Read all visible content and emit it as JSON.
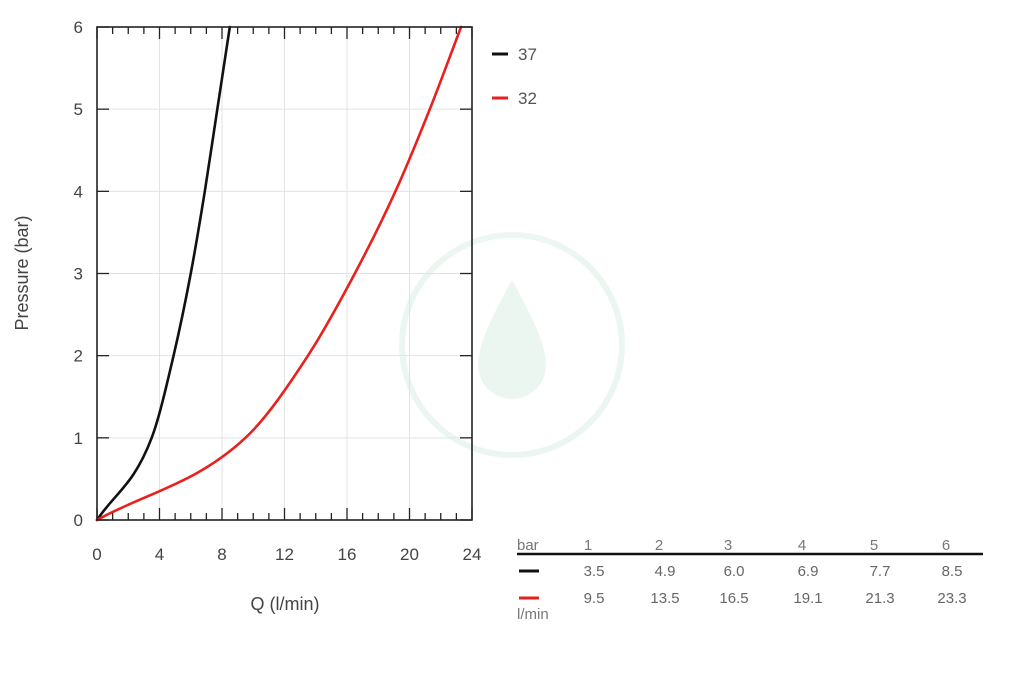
{
  "chart_data": {
    "type": "line",
    "xlabel": "Q (l/min)",
    "ylabel": "Pressure (bar)",
    "xlim": [
      0,
      24
    ],
    "ylim": [
      0,
      6
    ],
    "x_ticks": [
      "0",
      "4",
      "8",
      "12",
      "16",
      "20",
      "24"
    ],
    "y_ticks": [
      "0",
      "1",
      "2",
      "3",
      "4",
      "5",
      "6"
    ],
    "grid": true,
    "legend_position": "right",
    "series": [
      {
        "name": "37",
        "color": "#111111",
        "points": [
          [
            0,
            0
          ],
          [
            3.5,
            1
          ],
          [
            4.9,
            2
          ],
          [
            6.0,
            3
          ],
          [
            6.9,
            4
          ],
          [
            7.7,
            5
          ],
          [
            8.5,
            6
          ]
        ]
      },
      {
        "name": "32",
        "color": "#e8211e",
        "points": [
          [
            0,
            0
          ],
          [
            9.5,
            1
          ],
          [
            13.5,
            2
          ],
          [
            16.5,
            3
          ],
          [
            19.1,
            4
          ],
          [
            21.3,
            5
          ],
          [
            23.3,
            6
          ]
        ]
      }
    ]
  },
  "table": {
    "header_label": "bar",
    "unit_label": "l/min",
    "pressures": [
      "1",
      "2",
      "3",
      "4",
      "5",
      "6"
    ],
    "rows": [
      {
        "color": "#111111",
        "values": [
          "3.5",
          "4.9",
          "6.0",
          "6.9",
          "7.7",
          "8.5"
        ]
      },
      {
        "color": "#e8211e",
        "values": [
          "9.5",
          "13.5",
          "16.5",
          "19.1",
          "21.3",
          "23.3"
        ]
      }
    ]
  }
}
